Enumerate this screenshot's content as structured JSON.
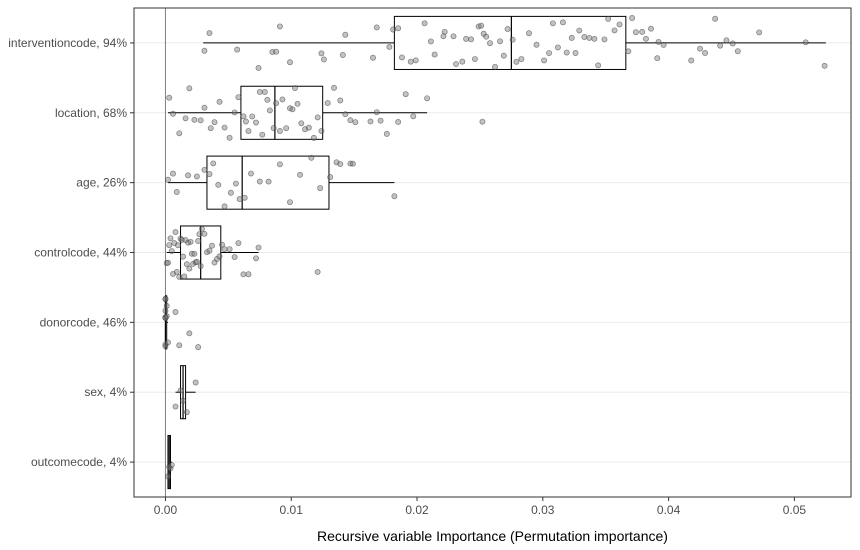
{
  "chart_data": {
    "type": "boxplot",
    "title": "",
    "xlabel": "Recursive variable Importance (Permutation importance)",
    "ylabel": "",
    "xlim": [
      -0.0025,
      0.0545
    ],
    "x_ticks": [
      0.0,
      0.01,
      0.02,
      0.03,
      0.04,
      0.05
    ],
    "x_tick_labels": [
      "0.00",
      "0.01",
      "0.02",
      "0.03",
      "0.04",
      "0.05"
    ],
    "zero_reference_line": 0,
    "grid": "horizontal-major",
    "legend": "none",
    "categories": [
      "interventioncode, 94%",
      "location, 68%",
      "age, 26%",
      "controlcode, 44%",
      "donorcode, 46%",
      "sex, 4%",
      "outcomecode, 4%"
    ],
    "boxes": [
      {
        "label": "interventioncode, 94%",
        "whisker_low": 0.003,
        "q1": 0.0182,
        "median": 0.0275,
        "q3": 0.0366,
        "whisker_high": 0.0525
      },
      {
        "label": "location, 68%",
        "whisker_low": 0.0002,
        "q1": 0.006,
        "median": 0.0087,
        "q3": 0.0125,
        "whisker_high": 0.0208
      },
      {
        "label": "age, 26%",
        "whisker_low": 0.0002,
        "q1": 0.0033,
        "median": 0.0061,
        "q3": 0.013,
        "whisker_high": 0.0182
      },
      {
        "label": "controlcode, 44%",
        "whisker_low": 0.0001,
        "q1": 0.0012,
        "median": 0.0028,
        "q3": 0.0044,
        "whisker_high": 0.0074
      },
      {
        "label": "donorcode, 46%",
        "whisker_low": 0.0,
        "q1": 0.0,
        "median": 0.0,
        "q3": 0.0001,
        "whisker_high": 0.0002
      },
      {
        "label": "sex, 4%",
        "whisker_low": 0.0008,
        "q1": 0.0012,
        "median": 0.0014,
        "q3": 0.0016,
        "whisker_high": 0.0024
      },
      {
        "label": "outcomecode, 4%",
        "whisker_low": 0.0002,
        "q1": 0.0002,
        "median": 0.0003,
        "q3": 0.0004,
        "whisker_high": 0.0005
      }
    ],
    "points": [
      {
        "label": "interventioncode, 94%",
        "values": [
          0.0031,
          0.0035,
          0.0057,
          0.0074,
          0.0085,
          0.0088,
          0.0091,
          0.0099,
          0.0124,
          0.0126,
          0.0141,
          0.0143,
          0.0165,
          0.0168,
          0.0178,
          0.0181,
          0.0185,
          0.0188,
          0.0195,
          0.0199,
          0.0206,
          0.0211,
          0.0214,
          0.0221,
          0.0222,
          0.0229,
          0.0231,
          0.0236,
          0.0239,
          0.0243,
          0.0246,
          0.0249,
          0.0251,
          0.0253,
          0.0255,
          0.0258,
          0.0262,
          0.0266,
          0.0269,
          0.0272,
          0.0276,
          0.0279,
          0.0283,
          0.0289,
          0.0295,
          0.0301,
          0.0305,
          0.0308,
          0.0312,
          0.0316,
          0.0319,
          0.0323,
          0.0326,
          0.0329,
          0.0333,
          0.0337,
          0.0341,
          0.0344,
          0.0349,
          0.0352,
          0.0357,
          0.0361,
          0.0368,
          0.0371,
          0.0374,
          0.0379,
          0.0382,
          0.0386,
          0.0391,
          0.0392,
          0.0396,
          0.0418,
          0.0425,
          0.0429,
          0.0437,
          0.0441,
          0.0446,
          0.0451,
          0.0455,
          0.0472,
          0.0509,
          0.0524
        ]
      },
      {
        "label": "location, 68%",
        "values": [
          0.0003,
          0.0006,
          0.0011,
          0.0016,
          0.0019,
          0.0023,
          0.0028,
          0.0031,
          0.0036,
          0.0039,
          0.0043,
          0.0047,
          0.0051,
          0.0055,
          0.0058,
          0.0062,
          0.0064,
          0.0066,
          0.0069,
          0.0072,
          0.0075,
          0.0077,
          0.0079,
          0.0081,
          0.0083,
          0.0086,
          0.0088,
          0.0091,
          0.0093,
          0.0096,
          0.0099,
          0.0101,
          0.0103,
          0.0105,
          0.0108,
          0.0111,
          0.0114,
          0.0118,
          0.0121,
          0.0124,
          0.0129,
          0.0134,
          0.0139,
          0.0143,
          0.0147,
          0.0151,
          0.0163,
          0.0168,
          0.0171,
          0.0176,
          0.0185,
          0.0191,
          0.0197,
          0.0208,
          0.0252
        ]
      },
      {
        "label": "age, 26%",
        "values": [
          0.0002,
          0.0006,
          0.0009,
          0.0018,
          0.0025,
          0.0031,
          0.0035,
          0.0038,
          0.0042,
          0.0047,
          0.0052,
          0.0056,
          0.0059,
          0.0063,
          0.0068,
          0.0075,
          0.0082,
          0.0091,
          0.0099,
          0.0107,
          0.0116,
          0.0123,
          0.0131,
          0.0136,
          0.0139,
          0.0147,
          0.0149,
          0.0182
        ]
      },
      {
        "label": "controlcode, 44%",
        "values": [
          0.0001,
          0.0002,
          0.0003,
          0.0004,
          0.0005,
          0.0006,
          0.0007,
          0.0008,
          0.0009,
          0.001,
          0.0011,
          0.0012,
          0.0013,
          0.0014,
          0.0015,
          0.0016,
          0.0017,
          0.0018,
          0.0019,
          0.002,
          0.0021,
          0.0022,
          0.0023,
          0.0024,
          0.0025,
          0.0026,
          0.0027,
          0.0028,
          0.0029,
          0.0031,
          0.0033,
          0.0035,
          0.0037,
          0.0039,
          0.0041,
          0.0043,
          0.0045,
          0.0047,
          0.0051,
          0.0055,
          0.0058,
          0.0062,
          0.0066,
          0.0072,
          0.0074,
          0.0121
        ]
      },
      {
        "label": "donorcode, 46%",
        "values": [
          0.0,
          0.0,
          0.0,
          0.0,
          0.0,
          0.0,
          0.0,
          0.0,
          0.0001,
          0.0001,
          0.0002,
          0.0008,
          0.0011,
          0.0019,
          0.0026
        ]
      },
      {
        "label": "sex, 4%",
        "values": [
          0.0008,
          0.0012,
          0.0014,
          0.0017,
          0.0024
        ]
      },
      {
        "label": "outcomecode, 4%",
        "values": [
          0.0002,
          0.0003,
          0.0004,
          0.0005
        ]
      }
    ]
  }
}
